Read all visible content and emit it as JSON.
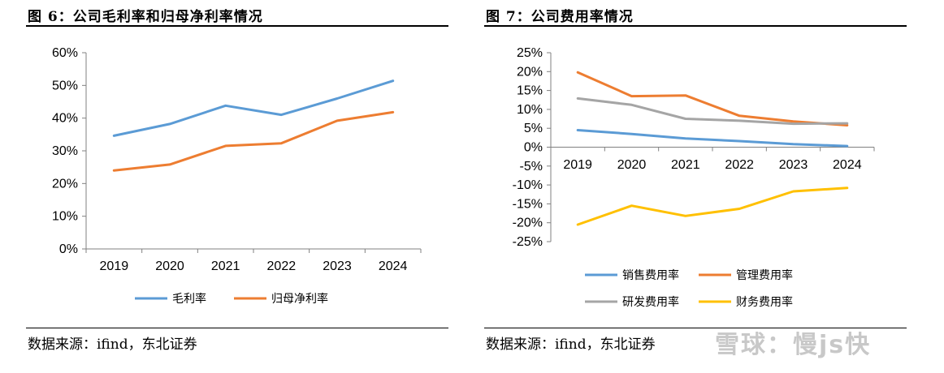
{
  "figures": [
    {
      "title": "图 6：公司毛利率和归母净利率情况",
      "source": "数据来源：ifind，东北证券"
    },
    {
      "title": "图 7：公司费用率情况",
      "source": "数据来源：ifind，东北证券"
    }
  ],
  "watermark": "雪球：慢js快",
  "chart_data": [
    {
      "type": "line",
      "title": "图 6：公司毛利率和归母净利率情况",
      "categories": [
        "2019",
        "2020",
        "2021",
        "2022",
        "2023",
        "2024"
      ],
      "ylim": [
        0,
        60
      ],
      "yticks": [
        0,
        10,
        20,
        30,
        40,
        50,
        60
      ],
      "ytick_labels": [
        "0%",
        "10%",
        "20%",
        "30%",
        "40%",
        "50%",
        "60%"
      ],
      "xlabel": "",
      "ylabel": "",
      "legend_position": "bottom",
      "series": [
        {
          "name": "毛利率",
          "color": "#5B9BD5",
          "values": [
            34.6,
            38.2,
            43.8,
            41.0,
            46.0,
            51.4
          ]
        },
        {
          "name": "归母净利率",
          "color": "#ED7D31",
          "values": [
            24.0,
            25.8,
            31.5,
            32.3,
            39.2,
            41.8
          ]
        }
      ]
    },
    {
      "type": "line",
      "title": "图 7：公司费用率情况",
      "categories": [
        "2019",
        "2020",
        "2021",
        "2022",
        "2023",
        "2024"
      ],
      "ylim": [
        -25,
        25
      ],
      "yticks": [
        -25,
        -20,
        -15,
        -10,
        -5,
        0,
        5,
        10,
        15,
        20,
        25
      ],
      "ytick_labels": [
        "-25%",
        "-20%",
        "-15%",
        "-10%",
        "-5%",
        "0%",
        "5%",
        "10%",
        "15%",
        "20%",
        "25%"
      ],
      "xlabel": "",
      "ylabel": "",
      "legend_position": "bottom",
      "series": [
        {
          "name": "销售费用率",
          "color": "#5B9BD5",
          "values": [
            4.5,
            3.5,
            2.3,
            1.6,
            0.8,
            0.3
          ]
        },
        {
          "name": "管理费用率",
          "color": "#ED7D31",
          "values": [
            19.8,
            13.5,
            13.7,
            8.3,
            6.8,
            5.8
          ]
        },
        {
          "name": "研发费用率",
          "color": "#A5A5A5",
          "values": [
            12.9,
            11.2,
            7.5,
            7.0,
            6.2,
            6.3
          ]
        },
        {
          "name": "财务费用率",
          "color": "#FFC000",
          "values": [
            -20.5,
            -15.5,
            -18.2,
            -16.3,
            -11.7,
            -10.8
          ]
        }
      ]
    }
  ]
}
